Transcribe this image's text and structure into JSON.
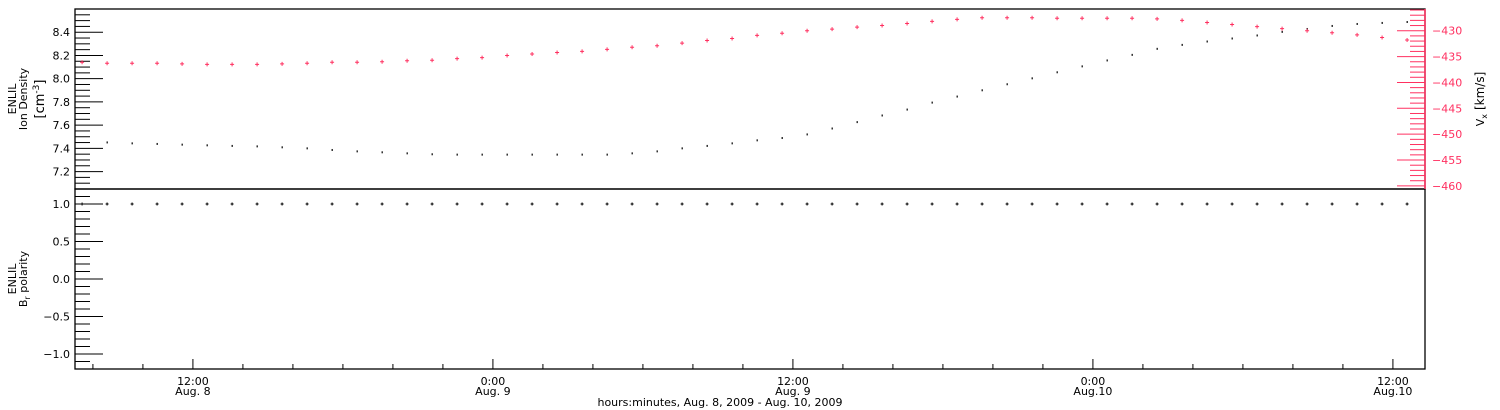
{
  "colors": {
    "density": "#000000",
    "velocity": "#ff3060",
    "polarity": "#000000",
    "axis": "#000000"
  },
  "x_axis": {
    "title": "hours:minutes, Aug.  8, 2009 - Aug. 10, 2009",
    "range": [
      "2009-08-08T07:17",
      "2009-08-10T13:17"
    ],
    "major_ticks": [
      {
        "time": "2009-08-08T12:00",
        "line1": "12:00",
        "line2": "Aug. 8"
      },
      {
        "time": "2009-08-09T00:00",
        "line1": "0:00",
        "line2": "Aug. 9"
      },
      {
        "time": "2009-08-09T12:00",
        "line1": "12:00",
        "line2": "Aug. 9"
      },
      {
        "time": "2009-08-10T00:00",
        "line1": "0:00",
        "line2": "Aug.10"
      },
      {
        "time": "2009-08-10T12:00",
        "line1": "12:00",
        "line2": "Aug.10"
      }
    ],
    "minor_tick_hours": 2
  },
  "chart_data": [
    {
      "type": "scatter",
      "panel": "top",
      "ylabel": {
        "line1": "ENLIL",
        "line2": "Ion Density",
        "unit_pre": "[cm",
        "unit_sup": "-3",
        "unit_post": "]"
      },
      "ylim": [
        7.05,
        8.6
      ],
      "yticks": [
        "7.2",
        "7.4",
        "7.6",
        "7.8",
        "8.0",
        "8.2",
        "8.4"
      ],
      "yminor": 0.05,
      "y2label": {
        "main": "V",
        "sub": "x",
        "unit": "[km/s]"
      },
      "y2lim": [
        -460.6,
        -425.8
      ],
      "y2ticks": [
        "-460",
        "-455",
        "-450",
        "-445",
        "-440",
        "-435",
        "-430"
      ],
      "y2minor": 1,
      "x_start": "2009-08-08T07:34",
      "x_step_hours": 1,
      "density": [
        null,
        7.451,
        7.443,
        7.438,
        7.432,
        7.426,
        7.421,
        7.417,
        7.409,
        7.4,
        7.386,
        7.374,
        7.366,
        7.357,
        7.349,
        7.346,
        7.346,
        7.346,
        7.346,
        7.346,
        7.346,
        7.346,
        7.357,
        7.374,
        7.4,
        7.421,
        7.443,
        7.469,
        7.489,
        7.52,
        7.571,
        7.626,
        7.683,
        7.734,
        7.794,
        7.846,
        7.9,
        7.952,
        8.003,
        8.055,
        8.106,
        8.157,
        8.205,
        8.257,
        8.291,
        8.32,
        8.346,
        8.372,
        8.403,
        8.428,
        8.454,
        8.471,
        8.48,
        8.488
      ],
      "vx": [
        -436.1,
        -436.3,
        -436.3,
        -436.3,
        -436.4,
        -436.5,
        -436.5,
        -436.5,
        -436.4,
        -436.3,
        -436.1,
        -436.1,
        -436.0,
        -435.8,
        -435.7,
        -435.4,
        -435.2,
        -434.8,
        -434.5,
        -434.2,
        -434.0,
        -433.6,
        -433.2,
        -432.9,
        -432.4,
        -431.9,
        -431.5,
        -430.9,
        -430.5,
        -430.0,
        -429.7,
        -429.3,
        -429.0,
        -428.6,
        -428.2,
        -427.8,
        -427.5,
        -427.5,
        -427.5,
        -427.6,
        -427.6,
        -427.6,
        -427.6,
        -427.7,
        -428.0,
        -428.4,
        -428.8,
        -429.2,
        -429.6,
        -430.0,
        -430.4,
        -430.8,
        -431.3,
        -431.8
      ]
    },
    {
      "type": "scatter",
      "panel": "bottom",
      "ylabel": {
        "line1": "ENLIL",
        "main": "B",
        "sub": "r",
        "rest": " polarity"
      },
      "ylim": [
        -1.2,
        1.2
      ],
      "yticks": [
        "-1.0",
        "-0.5",
        "0.0",
        "0.5",
        "1.0"
      ],
      "yminor": 0.1,
      "x_start": "2009-08-08T07:34",
      "x_step_hours": 1,
      "polarity": [
        1,
        1,
        1,
        1,
        1,
        1,
        1,
        1,
        1,
        1,
        1,
        1,
        1,
        1,
        1,
        1,
        1,
        1,
        1,
        1,
        1,
        1,
        1,
        1,
        1,
        1,
        1,
        1,
        1,
        1,
        1,
        1,
        1,
        1,
        1,
        1,
        1,
        1,
        1,
        1,
        1,
        1,
        1,
        1,
        1,
        1,
        1,
        1,
        1,
        1,
        1,
        1,
        1,
        1
      ]
    }
  ]
}
